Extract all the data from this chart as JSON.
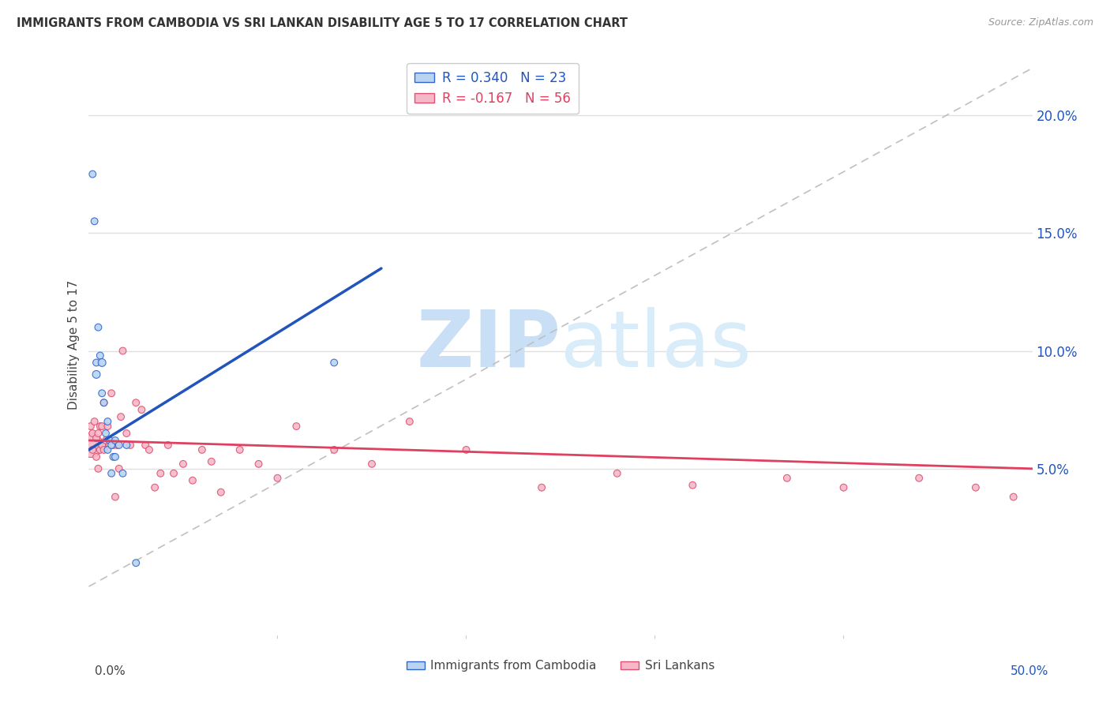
{
  "title": "IMMIGRANTS FROM CAMBODIA VS SRI LANKAN DISABILITY AGE 5 TO 17 CORRELATION CHART",
  "source": "Source: ZipAtlas.com",
  "ylabel": "Disability Age 5 to 17",
  "ytick_labels": [
    "5.0%",
    "10.0%",
    "15.0%",
    "20.0%"
  ],
  "ytick_values": [
    0.05,
    0.1,
    0.15,
    0.2
  ],
  "xlim": [
    0.0,
    0.5
  ],
  "ylim": [
    -0.02,
    0.225
  ],
  "legend_entries": [
    {
      "label": "Immigrants from Cambodia",
      "R": "0.340",
      "N": "23",
      "color": "#b8d4f0",
      "edge": "#3366cc"
    },
    {
      "label": "Sri Lankans",
      "R": "-0.167",
      "N": "56",
      "color": "#f5b8c8",
      "edge": "#e05070"
    }
  ],
  "cambodia_line_color": "#2255bb",
  "srilanka_line_color": "#e04060",
  "ref_line_color": "#c0c0c0",
  "background_color": "#ffffff",
  "grid_color": "#e0e0e0",
  "watermark_zip": "ZIP",
  "watermark_atlas": "atlas",
  "watermark_color": "#c8dff5",
  "cambodia_x": [
    0.002,
    0.003,
    0.004,
    0.004,
    0.005,
    0.006,
    0.007,
    0.007,
    0.008,
    0.009,
    0.01,
    0.01,
    0.011,
    0.012,
    0.012,
    0.013,
    0.014,
    0.014,
    0.016,
    0.018,
    0.02,
    0.025,
    0.13
  ],
  "cambodia_y": [
    0.175,
    0.155,
    0.095,
    0.09,
    0.11,
    0.098,
    0.095,
    0.082,
    0.078,
    0.065,
    0.07,
    0.058,
    0.062,
    0.06,
    0.048,
    0.055,
    0.062,
    0.055,
    0.06,
    0.048,
    0.06,
    0.01,
    0.095
  ],
  "cambodia_sizes": [
    40,
    40,
    40,
    50,
    40,
    40,
    50,
    40,
    40,
    40,
    40,
    40,
    40,
    40,
    40,
    40,
    40,
    40,
    40,
    40,
    40,
    40,
    40
  ],
  "srilanka_x": [
    0.001,
    0.001,
    0.002,
    0.002,
    0.003,
    0.004,
    0.004,
    0.005,
    0.005,
    0.006,
    0.006,
    0.007,
    0.007,
    0.008,
    0.008,
    0.009,
    0.01,
    0.011,
    0.012,
    0.013,
    0.014,
    0.015,
    0.016,
    0.017,
    0.018,
    0.02,
    0.022,
    0.025,
    0.028,
    0.03,
    0.032,
    0.035,
    0.038,
    0.042,
    0.045,
    0.05,
    0.055,
    0.06,
    0.065,
    0.07,
    0.08,
    0.09,
    0.1,
    0.11,
    0.13,
    0.15,
    0.17,
    0.2,
    0.24,
    0.28,
    0.32,
    0.37,
    0.4,
    0.44,
    0.47,
    0.49
  ],
  "srilanka_y": [
    0.06,
    0.068,
    0.065,
    0.058,
    0.07,
    0.063,
    0.055,
    0.065,
    0.05,
    0.068,
    0.058,
    0.068,
    0.06,
    0.078,
    0.058,
    0.062,
    0.068,
    0.06,
    0.082,
    0.06,
    0.038,
    0.06,
    0.05,
    0.072,
    0.1,
    0.065,
    0.06,
    0.078,
    0.075,
    0.06,
    0.058,
    0.042,
    0.048,
    0.06,
    0.048,
    0.052,
    0.045,
    0.058,
    0.053,
    0.04,
    0.058,
    0.052,
    0.046,
    0.068,
    0.058,
    0.052,
    0.07,
    0.058,
    0.042,
    0.048,
    0.043,
    0.046,
    0.042,
    0.046,
    0.042,
    0.038
  ],
  "srilanka_sizes": [
    500,
    40,
    40,
    40,
    40,
    40,
    40,
    40,
    40,
    40,
    40,
    40,
    40,
    40,
    40,
    40,
    40,
    40,
    40,
    40,
    40,
    40,
    40,
    40,
    40,
    40,
    40,
    40,
    40,
    40,
    40,
    40,
    40,
    40,
    40,
    40,
    40,
    40,
    40,
    40,
    40,
    40,
    40,
    40,
    40,
    40,
    40,
    40,
    40,
    40,
    40,
    40,
    40,
    40,
    40,
    40
  ],
  "cambodia_trend_x": [
    0.0,
    0.155
  ],
  "cambodia_trend_y": [
    0.058,
    0.135
  ],
  "srilanka_trend_x": [
    0.0,
    0.5
  ],
  "srilanka_trend_y": [
    0.062,
    0.05
  ]
}
